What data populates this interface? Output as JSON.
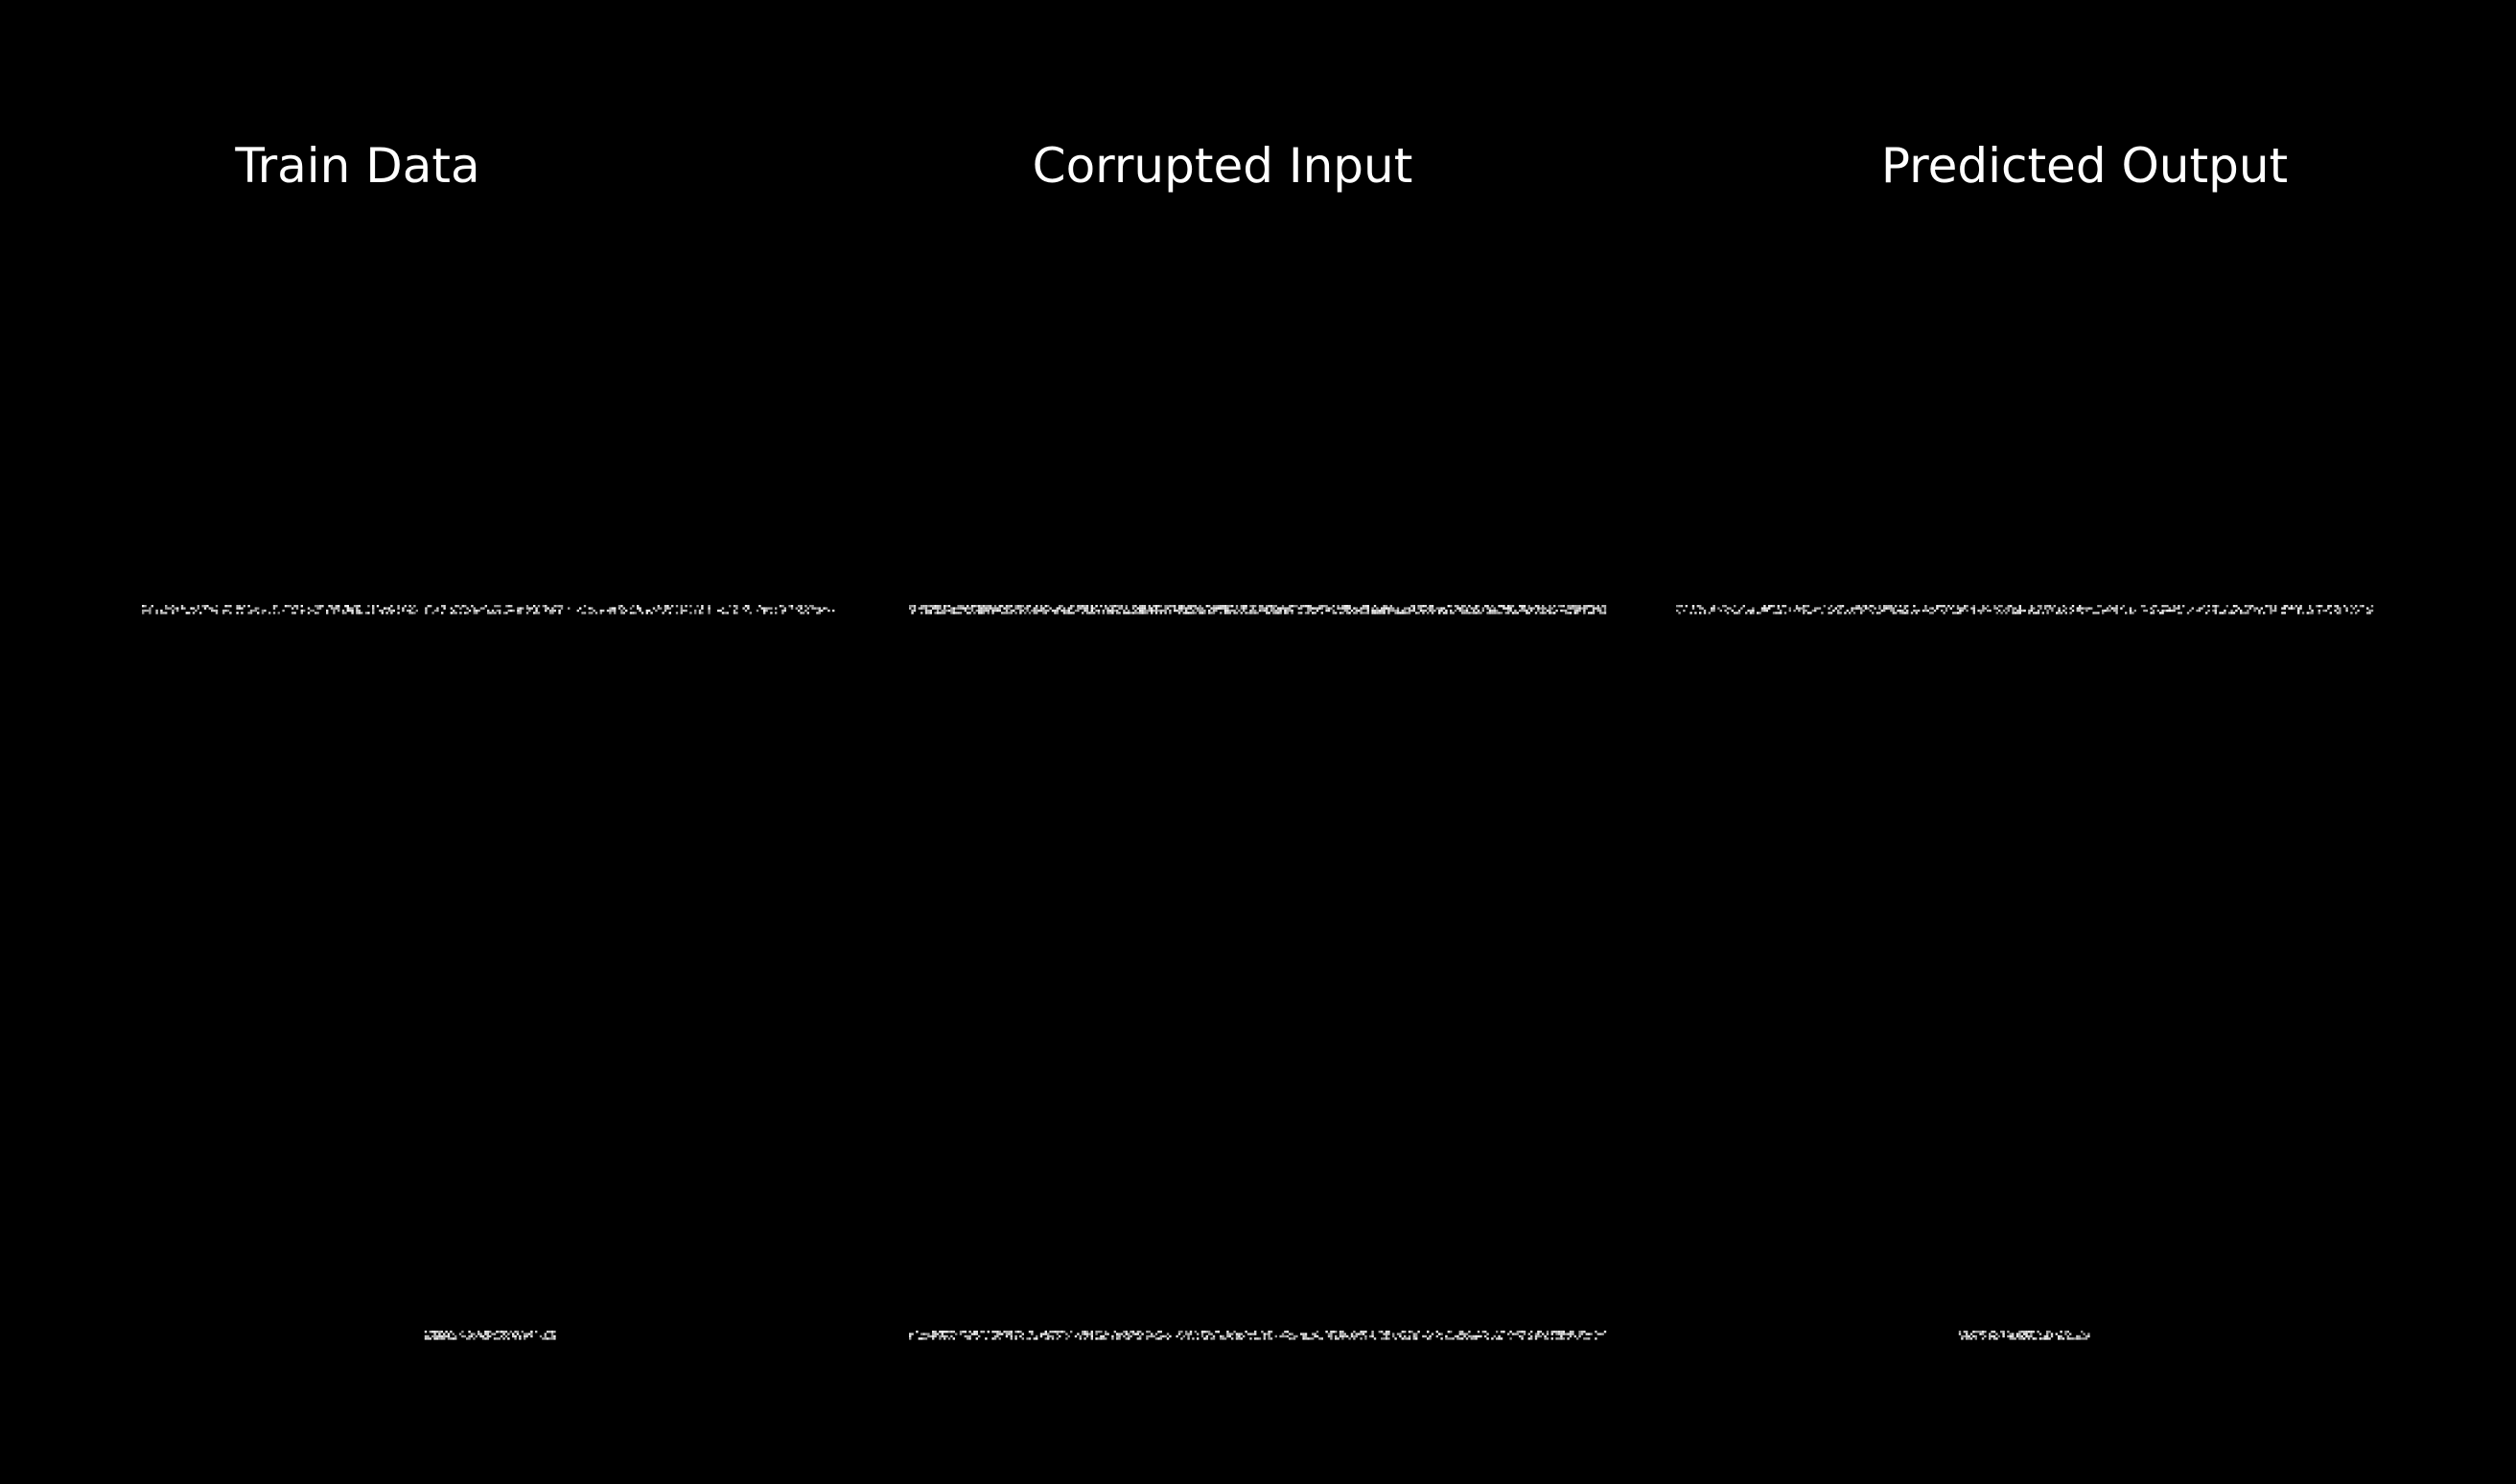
{
  "chart_data": {
    "type": "heatmap",
    "panels": [
      {
        "title": "Train Data",
        "rows": [
          {
            "extent": 1.0,
            "density": 0.38
          },
          {
            "extent": 0.19,
            "density": 0.55
          }
        ]
      },
      {
        "title": "Corrupted Input",
        "rows": [
          {
            "extent": 1.0,
            "density": 0.62
          },
          {
            "extent": 1.0,
            "density": 0.45
          }
        ]
      },
      {
        "title": "Predicted Output",
        "rows": [
          {
            "extent": 1.0,
            "density": 0.38
          },
          {
            "extent": 0.19,
            "density": 0.55
          }
        ]
      }
    ],
    "grid": false,
    "legend": "none",
    "colors": {
      "background": "#000000",
      "pixel": "#ffffff"
    }
  }
}
